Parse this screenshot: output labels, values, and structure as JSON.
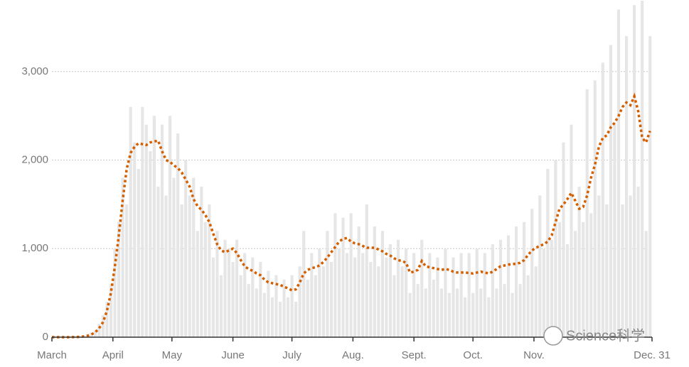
{
  "chart_data": {
    "type": "bar",
    "x": [
      0,
      2,
      4,
      6,
      8,
      10,
      12,
      14,
      16,
      18,
      20,
      22,
      24,
      26,
      28,
      30,
      32,
      34,
      36,
      38,
      40,
      42,
      44,
      46,
      48,
      50,
      52,
      54,
      56,
      58,
      60,
      62,
      64,
      66,
      68,
      70,
      72,
      74,
      76,
      78,
      80,
      82,
      84,
      86,
      88,
      90,
      92,
      94,
      96,
      98,
      100,
      102,
      104,
      106,
      108,
      110,
      112,
      114,
      116,
      118,
      120,
      122,
      124,
      126,
      128,
      130,
      132,
      134,
      136,
      138,
      140,
      142,
      144,
      146,
      148,
      150,
      152,
      154,
      156,
      158,
      160,
      162,
      164,
      166,
      168,
      170,
      172,
      174,
      176,
      178,
      180,
      182,
      184,
      186,
      188,
      190,
      192,
      194,
      196,
      198,
      200,
      202,
      204,
      206,
      208,
      210,
      212,
      214,
      216,
      218,
      220,
      222,
      224,
      226,
      228,
      230,
      232,
      234,
      236,
      238,
      240,
      242,
      244,
      246,
      248,
      250,
      252,
      254,
      256,
      258,
      260,
      262,
      264,
      266,
      268,
      270,
      272,
      274,
      276,
      278,
      280,
      282,
      284,
      286,
      288,
      290,
      292,
      294,
      296,
      298,
      300,
      302,
      304
    ],
    "series": [
      {
        "type": "bar",
        "color": "#e6e6e6",
        "values": [
          0,
          0,
          1,
          2,
          3,
          5,
          8,
          12,
          20,
          30,
          50,
          70,
          150,
          250,
          400,
          600,
          1000,
          1300,
          1800,
          1500,
          2600,
          2200,
          1900,
          2600,
          2400,
          2100,
          2500,
          1700,
          2400,
          1600,
          2500,
          1800,
          2300,
          1500,
          2000,
          1600,
          1800,
          1200,
          1700,
          1300,
          1500,
          900,
          1200,
          700,
          1100,
          1000,
          850,
          1100,
          700,
          950,
          600,
          900,
          550,
          850,
          500,
          750,
          450,
          700,
          400,
          650,
          450,
          700,
          400,
          800,
          1200,
          650,
          950,
          700,
          1000,
          800,
          1200,
          850,
          1400,
          1000,
          1350,
          950,
          1400,
          900,
          1250,
          950,
          1500,
          850,
          1250,
          800,
          1200,
          900,
          1050,
          700,
          1100,
          800,
          1000,
          500,
          950,
          600,
          1100,
          550,
          950,
          650,
          900,
          550,
          1000,
          500,
          900,
          550,
          950,
          450,
          950,
          500,
          1000,
          550,
          950,
          450,
          1050,
          550,
          1100,
          600,
          1150,
          500,
          1250,
          600,
          1300,
          700,
          1450,
          800,
          1600,
          1000,
          1900,
          1100,
          2000,
          1300,
          2200,
          1050,
          2400,
          1200,
          1700,
          1300,
          2800,
          1400,
          2900,
          1600,
          3100,
          1500,
          3300,
          2400,
          3700,
          1500,
          3400,
          1600,
          3750,
          1700,
          3800,
          1200,
          3400
        ]
      },
      {
        "type": "line",
        "color": "#d45f00",
        "values": [
          0,
          0,
          0,
          0,
          0,
          1,
          2,
          4,
          8,
          15,
          30,
          55,
          100,
          170,
          300,
          500,
          800,
          1150,
          1550,
          1900,
          2080,
          2150,
          2190,
          2180,
          2170,
          2200,
          2210,
          2220,
          2100,
          2000,
          1980,
          1940,
          1910,
          1860,
          1780,
          1700,
          1560,
          1480,
          1440,
          1380,
          1300,
          1170,
          1050,
          980,
          960,
          980,
          1000,
          950,
          870,
          800,
          770,
          750,
          720,
          700,
          650,
          620,
          610,
          600,
          590,
          570,
          550,
          530,
          540,
          620,
          720,
          760,
          780,
          790,
          810,
          850,
          900,
          960,
          1020,
          1080,
          1110,
          1120,
          1080,
          1060,
          1050,
          1030,
          1010,
          1010,
          1010,
          990,
          970,
          940,
          920,
          890,
          870,
          860,
          840,
          730,
          740,
          760,
          860,
          800,
          790,
          780,
          770,
          760,
          770,
          760,
          740,
          730,
          730,
          730,
          725,
          720,
          730,
          740,
          730,
          720,
          740,
          770,
          800,
          810,
          820,
          825,
          830,
          840,
          870,
          930,
          980,
          1010,
          1030,
          1050,
          1080,
          1150,
          1300,
          1450,
          1500,
          1560,
          1630,
          1540,
          1450,
          1470,
          1600,
          1800,
          1950,
          2150,
          2250,
          2280,
          2370,
          2420,
          2500,
          2600,
          2650,
          2620,
          2720,
          2550,
          2250,
          2200,
          2330
        ]
      }
    ],
    "xlim": [
      0,
      305
    ],
    "xticks": [
      {
        "value": 0,
        "label": "March"
      },
      {
        "value": 31,
        "label": "April"
      },
      {
        "value": 61,
        "label": "May"
      },
      {
        "value": 92,
        "label": "June"
      },
      {
        "value": 122,
        "label": "July"
      },
      {
        "value": 153,
        "label": "Aug."
      },
      {
        "value": 184,
        "label": "Sept."
      },
      {
        "value": 214,
        "label": "Oct."
      },
      {
        "value": 245,
        "label": "Nov."
      },
      {
        "value": 305,
        "label": "Dec. 31"
      }
    ],
    "ylim": [
      0,
      3800
    ],
    "yticks": [
      0,
      {
        "value": 1000,
        "label": "1,000"
      },
      {
        "value": 2000,
        "label": "2,000"
      },
      {
        "value": 3000,
        "label": "3,000"
      }
    ],
    "grid": true,
    "watermark": "Science科学"
  }
}
